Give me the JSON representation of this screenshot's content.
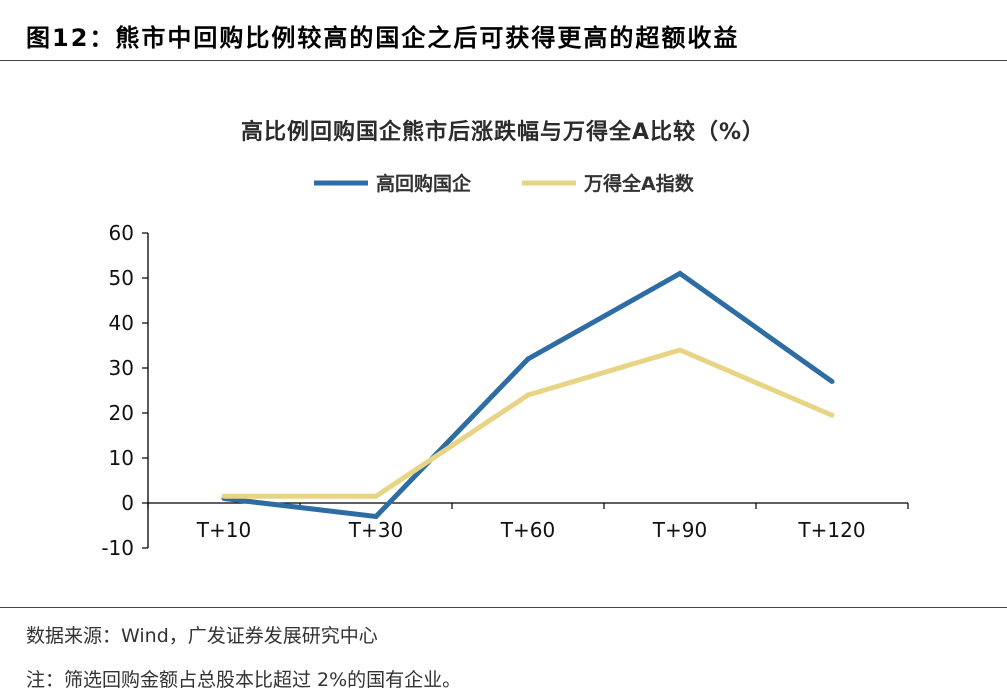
{
  "figure": {
    "title": "图12：熊市中回购比例较高的国企之后可获得更高的超额收益",
    "source": "数据来源：Wind，广发证券发展研究中心",
    "note": "注：筛选回购金额占总股本比超过 2%的国有企业。"
  },
  "chart_data": {
    "type": "line",
    "title": "高比例回购国企熊市后涨跌幅与万得全A比较（%）",
    "xlabel": "",
    "ylabel": "",
    "categories": [
      "T+10",
      "T+30",
      "T+60",
      "T+90",
      "T+120"
    ],
    "series": [
      {
        "name": "高回购国企",
        "color": "#2E6DA4",
        "values": [
          1,
          -3,
          32,
          51,
          27
        ]
      },
      {
        "name": "万得全A指数",
        "color": "#E8D485",
        "values": [
          1.5,
          1.5,
          24,
          34,
          19.5
        ]
      }
    ],
    "ylim": [
      -10,
      60
    ],
    "yticks": [
      -10,
      0,
      10,
      20,
      30,
      40,
      50,
      60
    ],
    "grid": false,
    "legend_position": "top-center"
  }
}
